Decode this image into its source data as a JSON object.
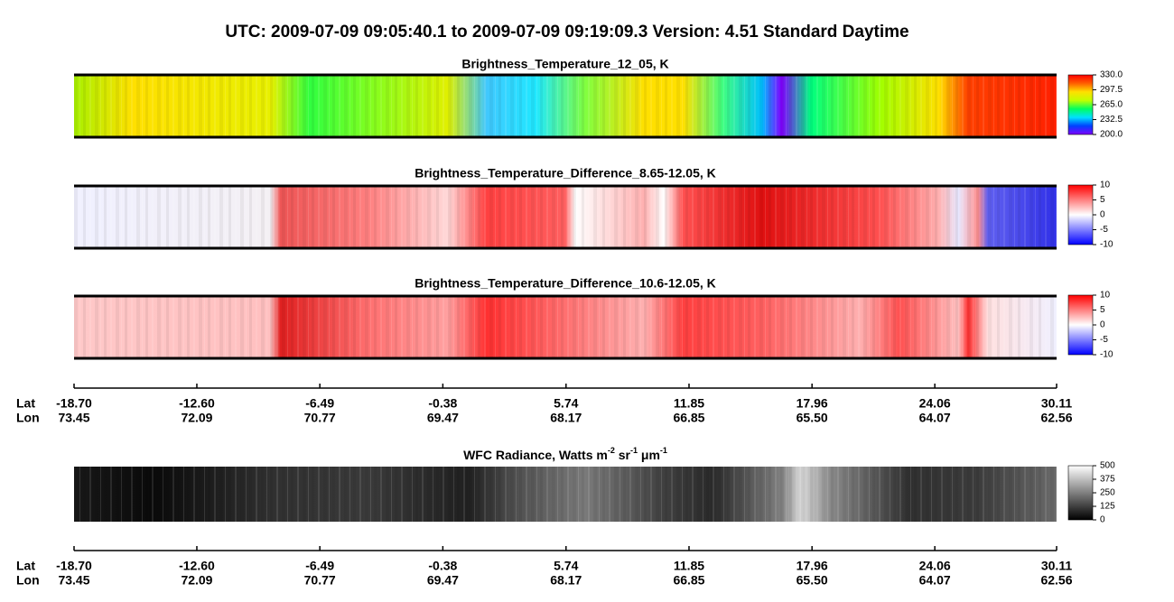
{
  "title": "UTC:  2009-07-09   09:05:40.1  to  2009-07-09   09:19:09.3    Version: 4.51  Standard Daytime",
  "chart_data": [
    {
      "type": "heatmap",
      "title": "Brightness_Temperature_12_05, K",
      "clim": [
        200,
        330
      ],
      "cticks": [
        {
          "value": 200,
          "label": "200.0"
        },
        {
          "value": 232.5,
          "label": "232.5"
        },
        {
          "value": 265,
          "label": "265.0"
        },
        {
          "value": 297.5,
          "label": "297.5"
        },
        {
          "value": 330,
          "label": "330.0"
        }
      ],
      "colormap": [
        "#8000ff",
        "#0040ff",
        "#00e0ff",
        "#00ff60",
        "#c0ff00",
        "#ffe000",
        "#ff6000",
        "#ff0000"
      ]
    },
    {
      "type": "heatmap",
      "title": "Brightness_Temperature_Difference_8.65-12.05, K",
      "clim": [
        -10,
        10
      ],
      "cticks": [
        -10,
        -5,
        0,
        5,
        10
      ],
      "colormap": [
        "#0000ff",
        "#ffffff",
        "#ff0000"
      ]
    },
    {
      "type": "heatmap",
      "title": "Brightness_Temperature_Difference_10.6-12.05, K",
      "clim": [
        -10,
        10
      ],
      "cticks": [
        -10,
        -5,
        0,
        5,
        10
      ],
      "colormap": [
        "#0000ff",
        "#ffffff",
        "#ff0000"
      ]
    },
    {
      "type": "heatmap",
      "title_parts": [
        "WFC Radiance, Watts m",
        "-2",
        " sr",
        "-1",
        " μm",
        "-1"
      ],
      "clim": [
        0,
        500
      ],
      "cticks": [
        0,
        125,
        250,
        375,
        500
      ],
      "colormap": [
        "#000000",
        "#ffffff"
      ]
    }
  ],
  "axes": [
    {
      "lat_label": "Lat",
      "lon_label": "Lon",
      "xlim": [
        -18.7,
        30.11
      ],
      "xticks": [
        {
          "value": -18.7,
          "label": "-18.70"
        },
        {
          "value": -12.6,
          "label": "-12.60"
        },
        -6.49,
        -0.38,
        5.74,
        11.85,
        17.96,
        24.06,
        30.11
      ],
      "lon": [
        73.45,
        72.09,
        70.77,
        69.47,
        68.17,
        66.85,
        {
          "value": 65.5,
          "label": "65.50"
        },
        64.07,
        62.56
      ]
    },
    {
      "lat_label": "Lat",
      "lon_label": "Lon",
      "xlim": [
        -18.7,
        30.11
      ],
      "xticks": [
        {
          "value": -18.7,
          "label": "-18.70"
        },
        {
          "value": -12.6,
          "label": "-12.60"
        },
        -6.49,
        -0.38,
        5.74,
        11.85,
        17.96,
        24.06,
        30.11
      ],
      "lon": [
        73.45,
        72.09,
        70.77,
        69.47,
        68.17,
        66.85,
        {
          "value": 65.5,
          "label": "65.50"
        },
        64.07,
        62.56
      ]
    }
  ]
}
